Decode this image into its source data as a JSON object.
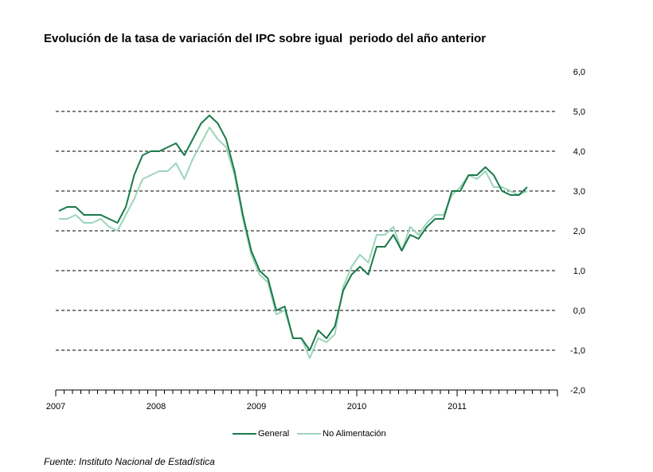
{
  "chart_data": {
    "type": "line",
    "title": "Evolución de la tasa de variación del IPC sobre igual  periodo del año anterior",
    "source": "Fuente: Instituto Nacional de Estadística",
    "ylim": [
      -2.0,
      6.0
    ],
    "y_ticks": [
      "6,0",
      "5,0",
      "4,0",
      "3,0",
      "2,0",
      "1,0",
      "0,0",
      "-1,0",
      "-2,0"
    ],
    "y_tick_values": [
      6,
      5,
      4,
      3,
      2,
      1,
      0,
      -1,
      -2
    ],
    "x_year_labels": [
      "2007",
      "2008",
      "2009",
      "2010",
      "2011"
    ],
    "x_start": "2007-01",
    "grid": "horizontal dashed",
    "legend_position": "bottom",
    "series": [
      {
        "name": "General",
        "color": "#1a7a4a",
        "values": [
          2.5,
          2.6,
          2.6,
          2.4,
          2.4,
          2.4,
          2.3,
          2.2,
          2.6,
          3.4,
          3.9,
          4.0,
          4.0,
          4.1,
          4.2,
          3.9,
          4.3,
          4.7,
          4.9,
          4.7,
          4.3,
          3.5,
          2.4,
          1.5,
          1.0,
          0.8,
          0.0,
          0.1,
          -0.7,
          -0.7,
          -1.0,
          -0.5,
          -0.7,
          -0.4,
          0.5,
          0.9,
          1.1,
          0.9,
          1.6,
          1.6,
          1.9,
          1.5,
          1.9,
          1.8,
          2.1,
          2.3,
          2.3,
          3.0,
          3.0,
          3.4,
          3.4,
          3.6,
          3.4,
          3.0,
          2.9,
          2.9,
          3.1
        ]
      },
      {
        "name": "No Alimentación",
        "color": "#9dd4bd",
        "values": [
          2.3,
          2.3,
          2.4,
          2.2,
          2.2,
          2.3,
          2.1,
          2.0,
          2.4,
          2.8,
          3.3,
          3.4,
          3.5,
          3.5,
          3.7,
          3.3,
          3.8,
          4.2,
          4.6,
          4.3,
          4.1,
          3.4,
          2.3,
          1.4,
          0.9,
          0.7,
          -0.1,
          0.0,
          -0.7,
          -0.7,
          -1.2,
          -0.7,
          -0.8,
          -0.6,
          0.6,
          1.1,
          1.4,
          1.2,
          1.9,
          1.9,
          2.1,
          1.5,
          2.1,
          1.9,
          2.2,
          2.4,
          2.4,
          2.9,
          3.1,
          3.4,
          3.3,
          3.5,
          3.1,
          3.1,
          3.0,
          2.9,
          3.0
        ]
      }
    ]
  }
}
